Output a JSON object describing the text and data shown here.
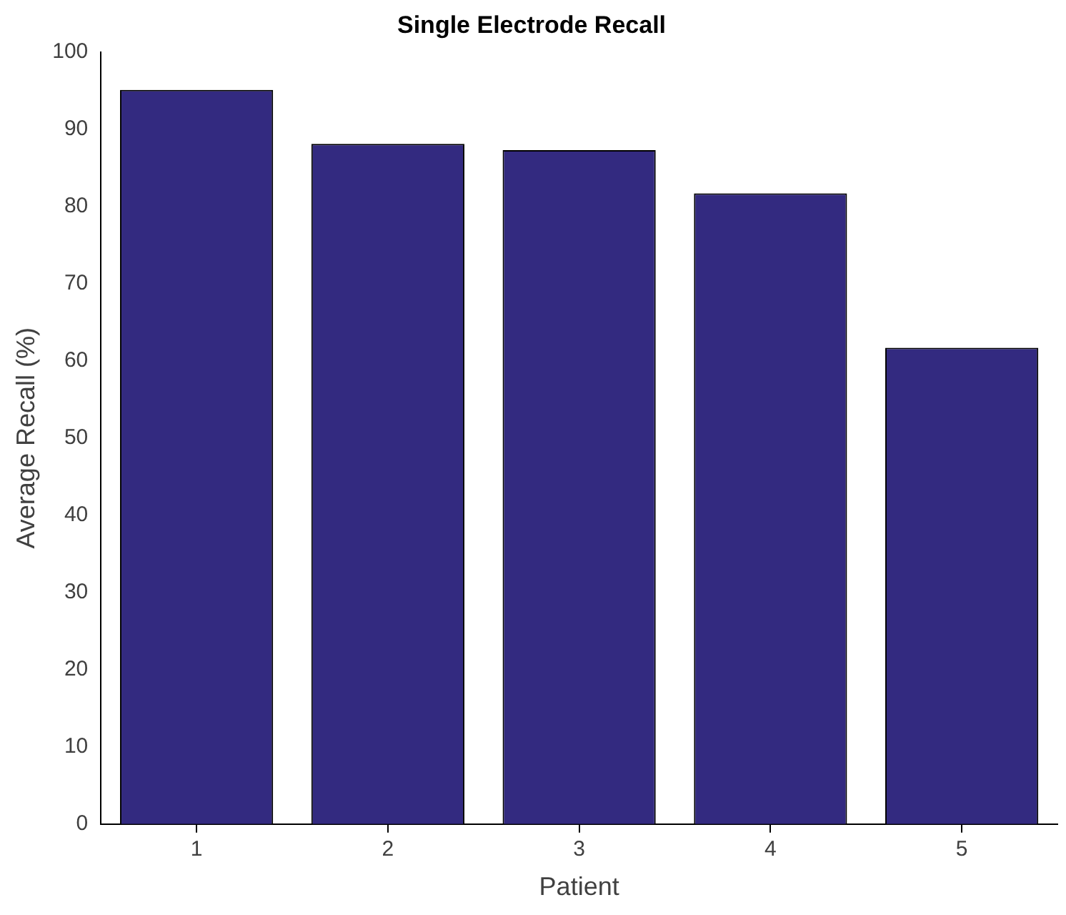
{
  "chart_data": {
    "type": "bar",
    "title": "Single Electrode Recall",
    "xlabel": "Patient",
    "ylabel": "Average Recall (%)",
    "categories": [
      "1",
      "2",
      "3",
      "4",
      "5"
    ],
    "values": [
      95.1,
      88.1,
      87.3,
      81.7,
      61.7
    ],
    "color": "#332a80",
    "ylim": [
      0,
      100
    ],
    "yticks": [
      0,
      10,
      20,
      30,
      40,
      50,
      60,
      70,
      80,
      90,
      100
    ],
    "grid": false,
    "legend": false
  }
}
